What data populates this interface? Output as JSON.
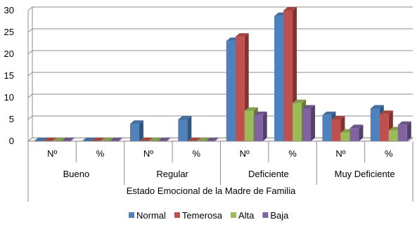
{
  "chart_data": {
    "type": "bar",
    "title": "",
    "xlabel": "Estado Emocional de la Madre de Familia",
    "ylabel": "",
    "ylim": [
      0,
      30
    ],
    "yticks": [
      0,
      5,
      10,
      15,
      20,
      25,
      30
    ],
    "groups": [
      {
        "label": "Bueno",
        "sub": [
          "Nº",
          "%"
        ]
      },
      {
        "label": "Regular",
        "sub": [
          "Nº",
          "%"
        ]
      },
      {
        "label": "Deficiente",
        "sub": [
          "Nº",
          "%"
        ]
      },
      {
        "label": "Muy Deficiente",
        "sub": [
          "Nº",
          "%"
        ]
      }
    ],
    "categories": [
      "Bueno Nº",
      "Bueno %",
      "Regular Nº",
      "Regular %",
      "Deficiente Nº",
      "Deficiente %",
      "Muy Deficiente Nº",
      "Muy Deficiente %"
    ],
    "series": [
      {
        "name": "Normal",
        "color": "#4F81BD",
        "values": [
          0,
          0,
          4,
          5,
          23,
          28.75,
          6,
          7.5
        ]
      },
      {
        "name": "Temerosa",
        "color": "#C0504D",
        "values": [
          0,
          0,
          0,
          0,
          24,
          30,
          5,
          6.25
        ]
      },
      {
        "name": "Alta",
        "color": "#9BBB59",
        "values": [
          0,
          0,
          0,
          0,
          7,
          8.75,
          2,
          2.5
        ]
      },
      {
        "name": "Baja",
        "color": "#8064A2",
        "values": [
          0,
          0,
          0,
          0,
          6,
          7.5,
          3,
          3.75
        ]
      }
    ],
    "three_d": true,
    "grid": true,
    "legend_position": "bottom"
  }
}
